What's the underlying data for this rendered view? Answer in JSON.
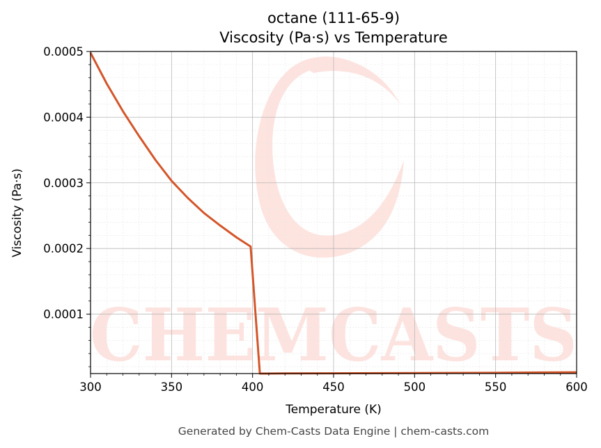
{
  "chart_data": {
    "type": "line",
    "title": "octane (111-65-9)",
    "subtitle": "Viscosity (Pa·s) vs Temperature",
    "xlabel": "Temperature (K)",
    "ylabel": "Viscosity (Pa·s)",
    "xlim": [
      300,
      600
    ],
    "ylim": [
      9.5e-06,
      0.0005
    ],
    "x_ticks": [
      300,
      350,
      400,
      450,
      500,
      550,
      600
    ],
    "x_tick_labels": [
      "300",
      "350",
      "400",
      "450",
      "500",
      "550",
      "600"
    ],
    "y_ticks": [
      0.0001,
      0.0002,
      0.0003,
      0.0004,
      0.0005
    ],
    "y_tick_labels": [
      "0.0001",
      "0.0002",
      "0.0003",
      "0.0004",
      "0.0005"
    ],
    "grid": true,
    "color": "#d4552a",
    "series": [
      {
        "x": [
          300,
          310,
          320,
          330,
          340,
          350,
          360,
          370,
          380,
          390,
          398.8,
          404.5,
          420,
          450,
          500,
          550,
          600
        ],
        "values": [
          0.000498,
          0.000451,
          0.000409,
          0.000371,
          0.000335,
          0.000303,
          0.000277,
          0.000254,
          0.000235,
          0.000217,
          0.000203,
          9.5e-06,
          9.7e-06,
          9.9e-06,
          1.03e-05,
          1.07e-05,
          1.15e-05
        ]
      }
    ]
  },
  "watermark": {
    "text": "CHEMCASTS",
    "color": "#fde1dc"
  },
  "footer": "Generated by Chem-Casts Data Engine | chem-casts.com"
}
